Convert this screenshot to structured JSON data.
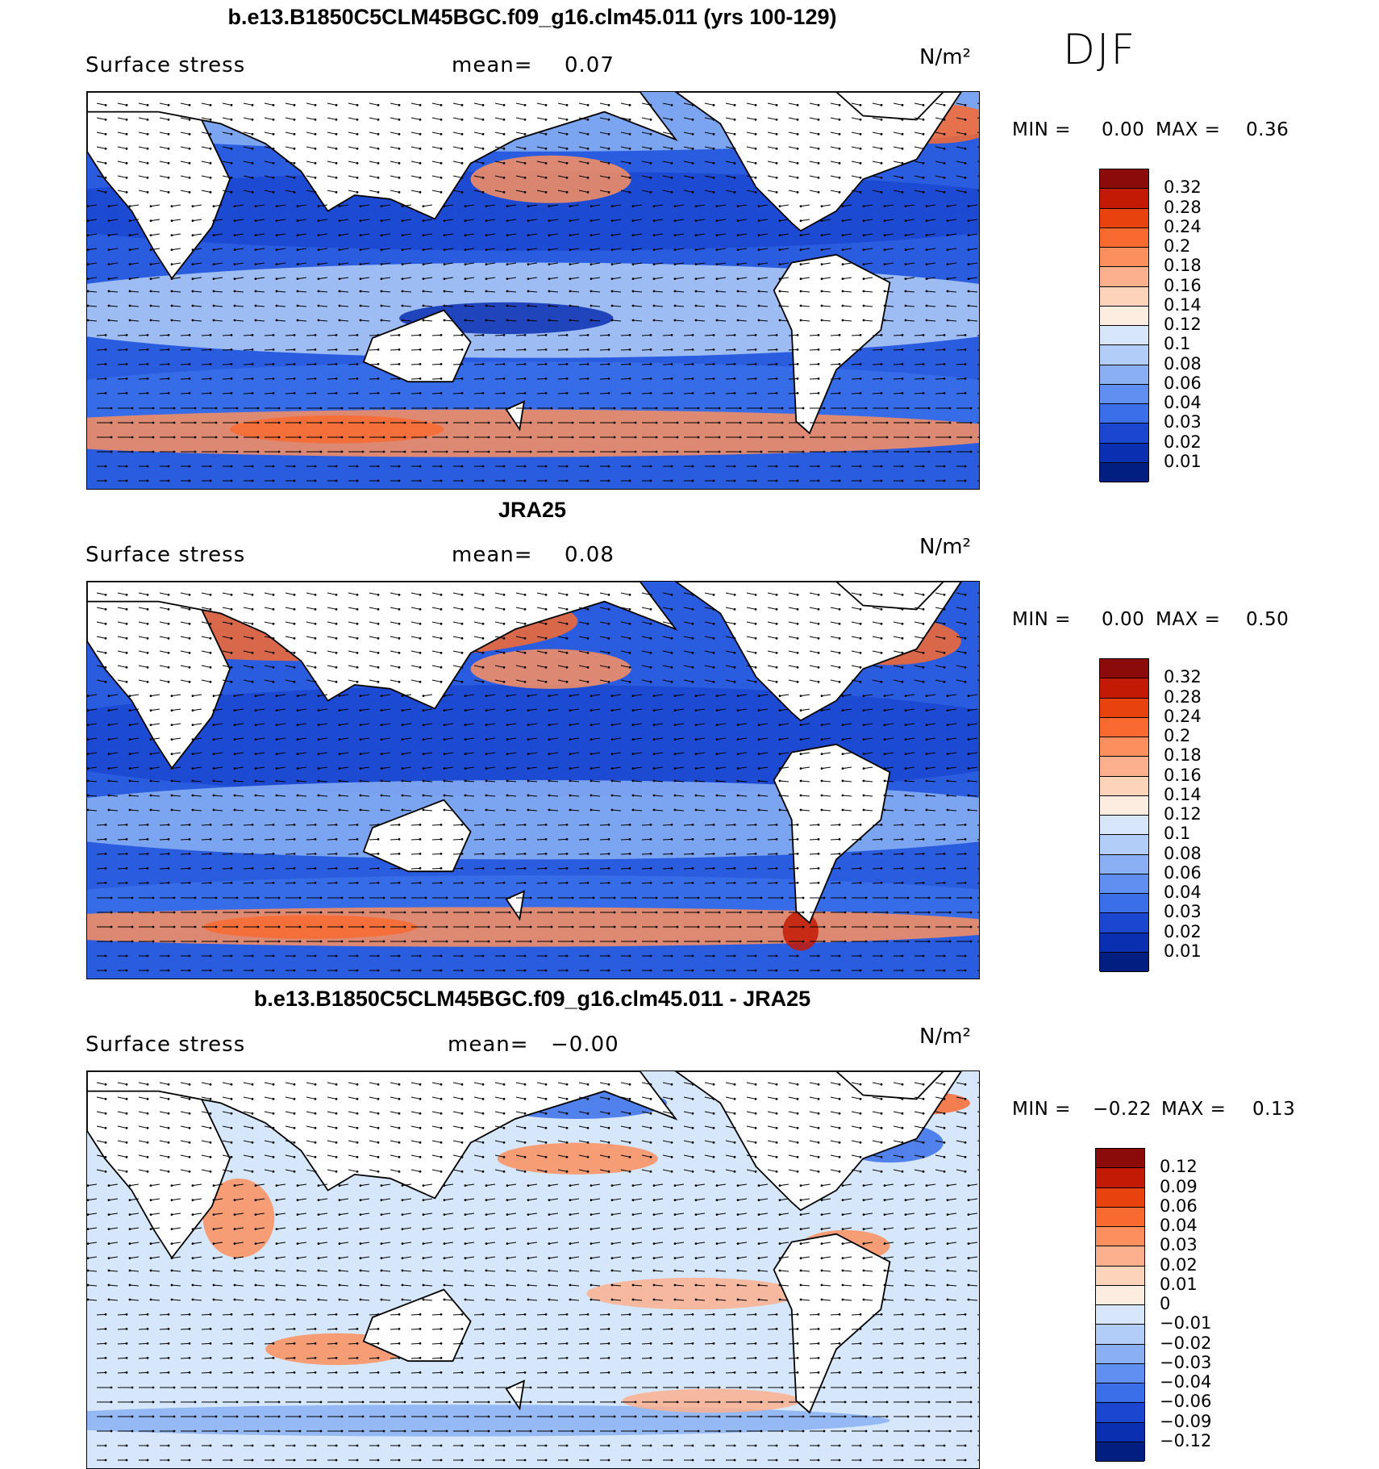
{
  "season": "DJF",
  "units_label": "N/m²",
  "chart_data": [
    {
      "type": "heatmap",
      "title": "b.e13.B1850C5CLM45BGC.f09_g16.clm45.011 (yrs 100-129)",
      "variable": "Surface stress",
      "mean_label": "mean=",
      "mean_value": "0.07",
      "units": "N/m²",
      "min_label": "MIN =",
      "min_value": "0.00",
      "max_label": "MAX =",
      "max_value": "0.36",
      "colorbar_levels": [
        "0.32",
        "0.28",
        "0.24",
        "0.2",
        "0.18",
        "0.16",
        "0.14",
        "0.12",
        "0.1",
        "0.08",
        "0.06",
        "0.04",
        "0.03",
        "0.02",
        "0.01"
      ],
      "colorbar_colors": [
        "#8b0b0b",
        "#c31a06",
        "#e8420f",
        "#f86a30",
        "#fc8f5e",
        "#fcb08e",
        "#fdd3b9",
        "#fdece0",
        "#d7e6fa",
        "#b2cdf7",
        "#8ab0f3",
        "#5f8ff0",
        "#3a6fe9",
        "#1b47d0",
        "#0a2fb0",
        "#001f80"
      ],
      "field_note": "wind-driven ocean surface stress with vectors"
    },
    {
      "type": "heatmap",
      "title": "JRA25",
      "variable": "Surface stress",
      "mean_label": "mean=",
      "mean_value": "0.08",
      "units": "N/m²",
      "min_label": "MIN =",
      "min_value": "0.00",
      "max_label": "MAX =",
      "max_value": "0.50",
      "colorbar_levels": [
        "0.32",
        "0.28",
        "0.24",
        "0.2",
        "0.18",
        "0.16",
        "0.14",
        "0.12",
        "0.1",
        "0.08",
        "0.06",
        "0.04",
        "0.03",
        "0.02",
        "0.01"
      ],
      "colorbar_colors": [
        "#8b0b0b",
        "#c31a06",
        "#e8420f",
        "#f86a30",
        "#fc8f5e",
        "#fcb08e",
        "#fdd3b9",
        "#fdece0",
        "#d7e6fa",
        "#b2cdf7",
        "#8ab0f3",
        "#5f8ff0",
        "#3a6fe9",
        "#1b47d0",
        "#0a2fb0",
        "#001f80"
      ]
    },
    {
      "type": "heatmap",
      "title": "b.e13.B1850C5CLM45BGC.f09_g16.clm45.011 - JRA25",
      "variable": "Surface stress",
      "mean_label": "mean=",
      "mean_value": "−0.00",
      "units": "N/m²",
      "min_label": "MIN =",
      "min_value": "−0.22",
      "max_label": "MAX =",
      "max_value": "0.13",
      "colorbar_levels": [
        "0.12",
        "0.09",
        "0.06",
        "0.04",
        "0.03",
        "0.02",
        "0.01",
        "0",
        "−0.01",
        "−0.02",
        "−0.03",
        "−0.04",
        "−0.06",
        "−0.09",
        "−0.12"
      ],
      "colorbar_colors": [
        "#8b0b0b",
        "#c31a06",
        "#e8420f",
        "#f86a30",
        "#fc8f5e",
        "#fcb08e",
        "#fdd3b9",
        "#fdece0",
        "#d7e6fa",
        "#b2cdf7",
        "#8ab0f3",
        "#5f8ff0",
        "#3a6fe9",
        "#1b47d0",
        "#0a2fb0",
        "#001f80"
      ]
    }
  ]
}
